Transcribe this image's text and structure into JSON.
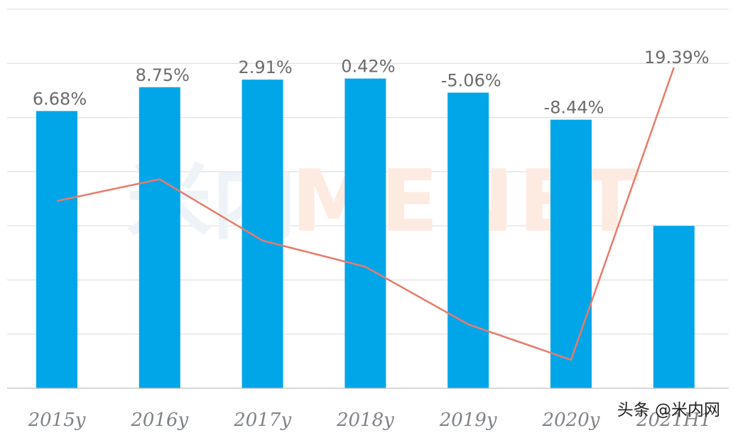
{
  "chart_data": {
    "type": "bar",
    "categories": [
      "2015y",
      "2016y",
      "2017y",
      "2018y",
      "2019y",
      "2020y",
      "2021H1"
    ],
    "series": [
      {
        "type": "bar",
        "values": [
          512,
          556,
          570,
          572,
          546,
          496,
          300
        ]
      },
      {
        "type": "line",
        "values": [
          6.68,
          8.75,
          2.91,
          0.42,
          -5.06,
          -8.44,
          19.39
        ],
        "labels": [
          "6.68%",
          "8.75%",
          "2.91%",
          "0.42%",
          "-5.06%",
          "-8.44%",
          "19.39%"
        ]
      }
    ],
    "ylim": [
      0,
      700
    ],
    "y2lim": [
      -10,
      20
    ],
    "grid": true,
    "legend": "none",
    "colors": {
      "bar": "#00a6e8",
      "line": "#e87b6b"
    }
  },
  "watermark": {
    "cn": "米内",
    "en": "MENET"
  },
  "credit": "头条 @米内网"
}
